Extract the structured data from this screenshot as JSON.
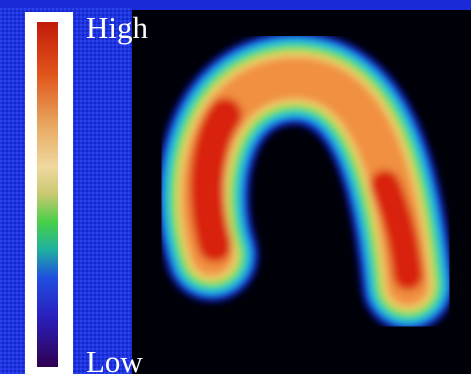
{
  "legend": {
    "high_label": "High",
    "low_label": "Low"
  }
}
